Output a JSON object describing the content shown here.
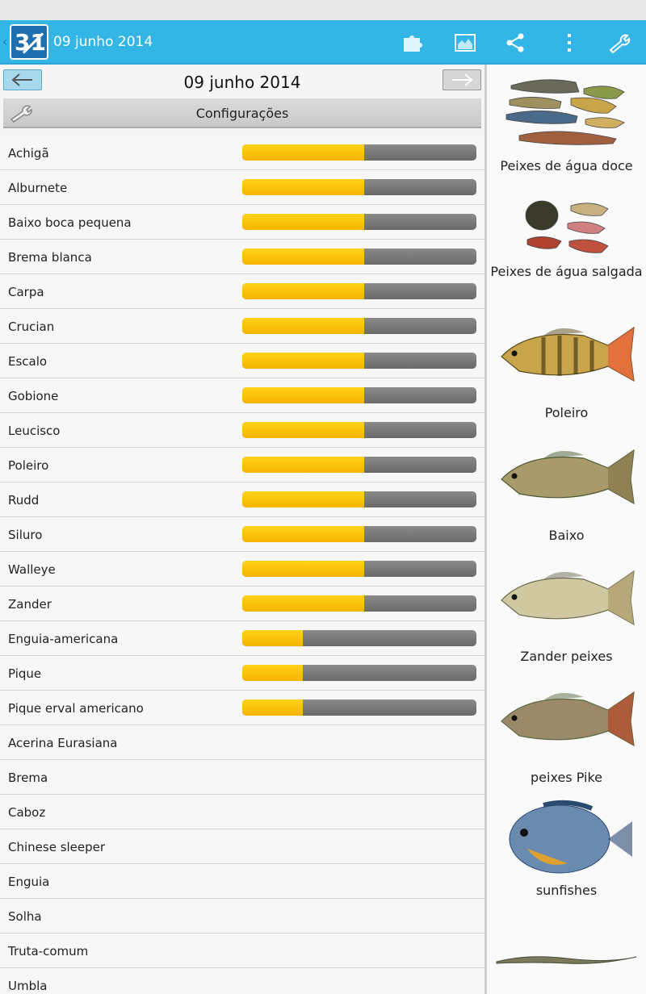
{
  "app": {
    "title": "09 junho 2014",
    "back_glyph": "‹",
    "logo_text": "31"
  },
  "actionbar_icons": [
    "puzzle-icon",
    "map-icon",
    "share-icon",
    "overflow-menu-icon",
    "wrench-icon"
  ],
  "nav": {
    "date": "09 junho 2014",
    "prev_glyph": "⇦",
    "next_glyph": "⇨"
  },
  "config": {
    "label": "Configurações"
  },
  "colors": {
    "actionbar": "#33b5e5",
    "bar_fill": "#f5b400",
    "bar_track": "#6a6a6a"
  },
  "species": [
    {
      "name": "Achigã",
      "rating": 0.52
    },
    {
      "name": "Alburnete",
      "rating": 0.52
    },
    {
      "name": "Baixo boca pequena",
      "rating": 0.52
    },
    {
      "name": "Brema blanca",
      "rating": 0.52
    },
    {
      "name": "Carpa",
      "rating": 0.52
    },
    {
      "name": "Crucian",
      "rating": 0.52
    },
    {
      "name": "Escalo",
      "rating": 0.52
    },
    {
      "name": "Gobione",
      "rating": 0.52
    },
    {
      "name": "Leucisco",
      "rating": 0.52
    },
    {
      "name": "Poleiro",
      "rating": 0.52
    },
    {
      "name": "Rudd",
      "rating": 0.52
    },
    {
      "name": "Siluro",
      "rating": 0.52
    },
    {
      "name": "Walleye",
      "rating": 0.52
    },
    {
      "name": "Zander",
      "rating": 0.52
    },
    {
      "name": "Enguia-americana",
      "rating": 0.26
    },
    {
      "name": "Pique",
      "rating": 0.26
    },
    {
      "name": "Pique erval americano",
      "rating": 0.26
    },
    {
      "name": "Acerina Eurasiana",
      "rating": null
    },
    {
      "name": "Brema",
      "rating": null
    },
    {
      "name": "Caboz",
      "rating": null
    },
    {
      "name": "Chinese sleeper",
      "rating": null
    },
    {
      "name": "Enguia",
      "rating": null
    },
    {
      "name": "Solha",
      "rating": null
    },
    {
      "name": "Truta-comum",
      "rating": null
    },
    {
      "name": "Umbla",
      "rating": null
    }
  ],
  "categories": [
    {
      "label": "Peixes de água doce",
      "icon": "freshwater-fish-group-icon"
    },
    {
      "label": "Peixes de água salgada",
      "icon": "saltwater-fish-group-icon"
    },
    {
      "label": "Poleiro",
      "icon": "perch-icon"
    },
    {
      "label": "Baixo",
      "icon": "bass-icon"
    },
    {
      "label": "Zander peixes",
      "icon": "zander-icon"
    },
    {
      "label": "peixes Pike",
      "icon": "pike-icon"
    },
    {
      "label": "sunfishes",
      "icon": "sunfish-icon"
    },
    {
      "label": "",
      "icon": "eel-icon"
    }
  ]
}
